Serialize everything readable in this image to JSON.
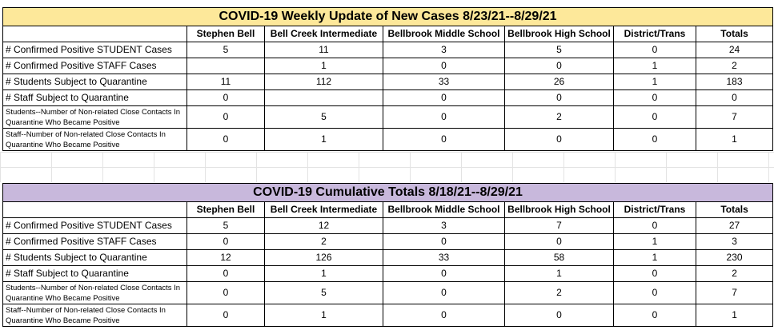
{
  "columns": [
    "",
    "Stephen Bell",
    "Bell Creek Intermediate",
    "Bellbrook Middle School",
    "Bellbrook High School",
    "District/Trans",
    "Totals"
  ],
  "weekly": {
    "title": "COVID-19 Weekly Update of New Cases 8/23/21--8/29/21",
    "rows": [
      {
        "label": "# Confirmed Positive STUDENT Cases",
        "small": false,
        "values": [
          "5",
          "11",
          "3",
          "5",
          "0",
          "24"
        ]
      },
      {
        "label": "# Confirmed Positive STAFF Cases",
        "small": false,
        "values": [
          "",
          "1",
          "0",
          "0",
          "1",
          "2"
        ]
      },
      {
        "label": "# Students Subject to Quarantine",
        "small": false,
        "values": [
          "11",
          "112",
          "33",
          "26",
          "1",
          "183"
        ]
      },
      {
        "label": "# Staff Subject to Quarantine",
        "small": false,
        "values": [
          "0",
          "",
          "0",
          "0",
          "0",
          "0"
        ]
      },
      {
        "label": "Students--Number of Non-related Close Contacts In Quarantine Who Became Positive",
        "small": true,
        "values": [
          "0",
          "5",
          "0",
          "2",
          "0",
          "7"
        ]
      },
      {
        "label": "Staff--Number of Non-related Close Contacts In Quarantine Who Became Positive",
        "small": true,
        "values": [
          "0",
          "1",
          "0",
          "0",
          "0",
          "1"
        ]
      }
    ]
  },
  "cumulative": {
    "title": "COVID-19 Cumulative Totals  8/18/21--8/29/21",
    "rows": [
      {
        "label": "# Confirmed Positive STUDENT Cases",
        "small": false,
        "values": [
          "5",
          "12",
          "3",
          "7",
          "0",
          "27"
        ]
      },
      {
        "label": "# Confirmed Positive STAFF Cases",
        "small": false,
        "values": [
          "0",
          "2",
          "0",
          "0",
          "1",
          "3"
        ]
      },
      {
        "label": "# Students Subject to Quarantine",
        "small": false,
        "values": [
          "12",
          "126",
          "33",
          "58",
          "1",
          "230"
        ]
      },
      {
        "label": "# Staff Subject to Quarantine",
        "small": false,
        "values": [
          "0",
          "1",
          "0",
          "1",
          "0",
          "2"
        ]
      },
      {
        "label": "Students--Number of Non-related Close Contacts In Quarantine Who Became Positive",
        "small": true,
        "values": [
          "0",
          "5",
          "0",
          "2",
          "0",
          "7"
        ]
      },
      {
        "label": "Staff--Number of Non-related Close Contacts In Quarantine Who Became Positive",
        "small": true,
        "values": [
          "0",
          "1",
          "0",
          "0",
          "0",
          "1"
        ]
      }
    ]
  },
  "colors": {
    "weekly_title_bg": "#fde89a",
    "cumulative_title_bg": "#c8b8dc",
    "border": "#000000"
  }
}
